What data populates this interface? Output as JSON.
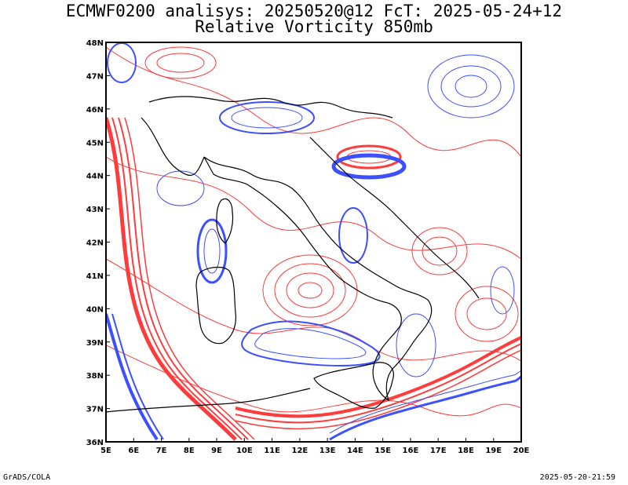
{
  "header": {
    "title_line1": "ECMWF0200 analisys: 20250520@12 FcT: 2025-05-24+12",
    "title_line2": "Relative Vorticity 850mb"
  },
  "footer": {
    "credit": "GrADS/COLA",
    "timestamp": "2025-05-20-21:59"
  },
  "map": {
    "lon_range": [
      5,
      20
    ],
    "lat_range": [
      36,
      48
    ],
    "lon_ticks": [
      "5E",
      "6E",
      "7E",
      "8E",
      "9E",
      "10E",
      "11E",
      "12E",
      "13E",
      "14E",
      "15E",
      "16E",
      "17E",
      "18E",
      "19E",
      "20E"
    ],
    "lat_ticks": [
      "36N",
      "37N",
      "38N",
      "39N",
      "40N",
      "41N",
      "42N",
      "43N",
      "44N",
      "45N",
      "46N",
      "47N",
      "48N"
    ],
    "colors": {
      "positive": "#ff3c3c",
      "negative": "#3c50ff",
      "coast": "#000000",
      "frame": "#000000"
    }
  }
}
